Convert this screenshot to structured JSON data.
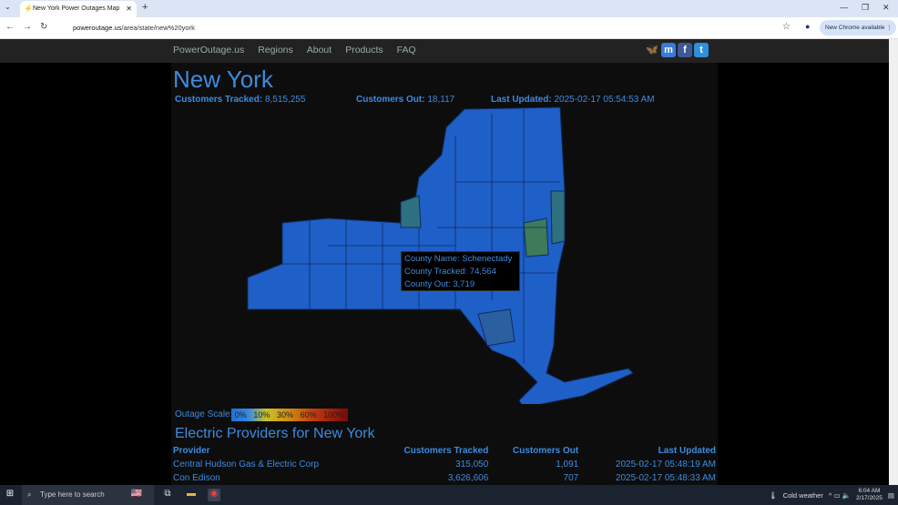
{
  "browser": {
    "tab_title": "New York Power Outages Map",
    "url_host": "poweroutage.us",
    "url_path": "/area/state/new%20york",
    "new_chrome": "New Chrome available"
  },
  "nav": {
    "items": [
      "PowerOutage.us",
      "Regions",
      "About",
      "Products",
      "FAQ"
    ]
  },
  "social": [
    "bluesky-icon",
    "mastodon-icon",
    "facebook-icon",
    "twitter-icon"
  ],
  "header": {
    "title": "New York",
    "tracked_label": "Customers Tracked:",
    "tracked": "8,515,255",
    "out_label": "Customers Out:",
    "out": "18,117",
    "updated_label": "Last Updated:",
    "updated": "2025-02-17 05:54:53 AM"
  },
  "tooltip": {
    "name": "County Name: Schenectady",
    "tracked": "County Tracked: 74,564",
    "out": "County Out: 3,719"
  },
  "scale": {
    "label": "Outage Scale:",
    "stops": [
      "0%",
      "10%",
      "30%",
      "60%",
      "100%"
    ]
  },
  "providers": {
    "title": "Electric Providers for New York",
    "headers": [
      "Provider",
      "Customers Tracked",
      "Customers Out",
      "Last Updated"
    ],
    "rows": [
      [
        "Central Hudson Gas & Electric Corp",
        "315,050",
        "1,091",
        "2025-02-17 05:48:19 AM"
      ],
      [
        "Con Edison",
        "3,626,606",
        "707",
        "2025-02-17 05:48:33 AM"
      ]
    ]
  },
  "colors": {
    "accent": "#3d8be0",
    "map_fill": "#1f5fc8",
    "map_highlight": "#2e6f80"
  },
  "taskbar": {
    "search_placeholder": "Type here to search",
    "weather": "Cold weather",
    "time": "6:04 AM",
    "date": "2/17/2025"
  }
}
